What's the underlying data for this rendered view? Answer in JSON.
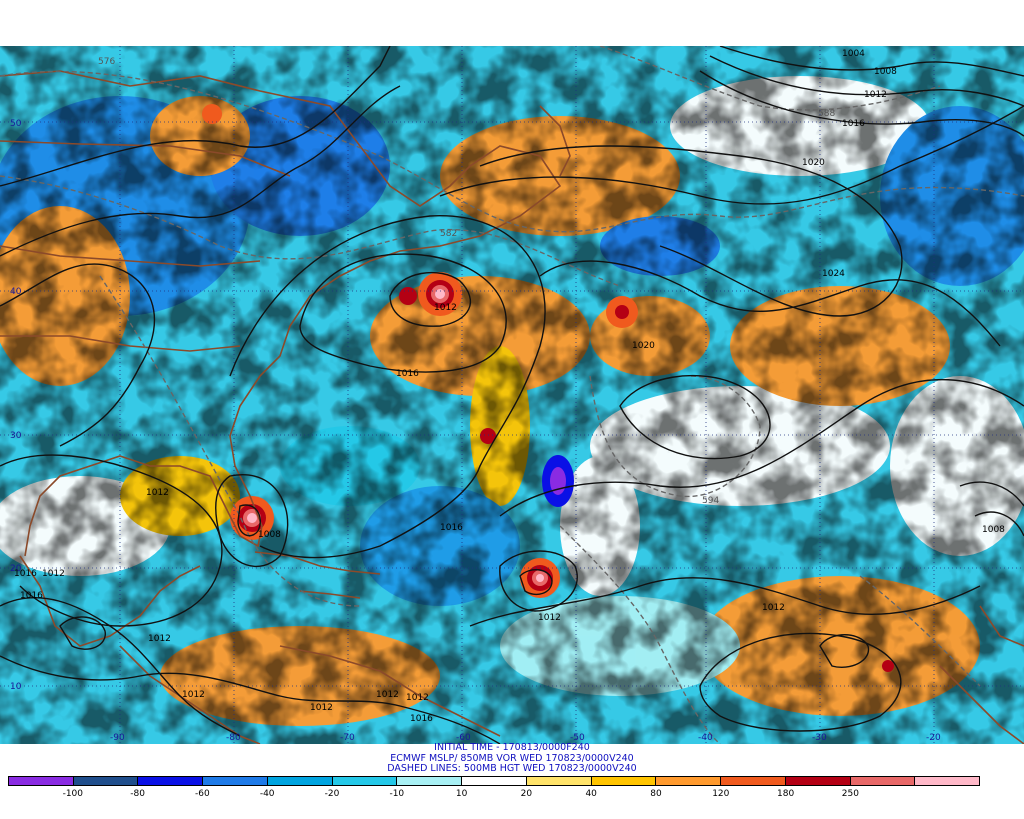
{
  "legend": {
    "colors": [
      "#8a2be2",
      "#1f4e8c",
      "#0a10e6",
      "#1e7ae8",
      "#00a4e0",
      "#24c8e8",
      "#a8f0f4",
      "#ffffff",
      "#ffe36a",
      "#ffc400",
      "#ff9a2e",
      "#f05a1e",
      "#b40014",
      "#e86868",
      "#ffb8c8"
    ],
    "ticks": [
      "-100",
      "-80",
      "-60",
      "-40",
      "-20",
      "-10",
      "10",
      "20",
      "40",
      "80",
      "120",
      "180",
      "250"
    ]
  },
  "captions": {
    "line1": "INITIAL TIME - 170813/0000F240",
    "line2": "ECMWF MSLP/ 850MB VOR WED 170823/0000V240",
    "line3": "DASHED LINES: 500MB HGT WED 170823/0000V240"
  },
  "lat_labels": [
    "50",
    "40",
    "30",
    "20",
    "10"
  ],
  "lon_labels": [
    "-90",
    "-80",
    "-70",
    "-60",
    "-50",
    "-40",
    "-30",
    "-20"
  ],
  "isobar_labels": [
    "1004",
    "1008",
    "1012",
    "1016",
    "1020",
    "1024",
    "1012",
    "1016",
    "1020",
    "1012",
    "1016",
    "1008",
    "1012",
    "1016",
    "1012",
    "1012",
    "1012",
    "1012",
    "1012",
    "1012",
    "1012",
    "1016",
    "1016",
    "1012",
    "1008"
  ],
  "height_labels": [
    "576",
    "588",
    "582",
    "594"
  ]
}
